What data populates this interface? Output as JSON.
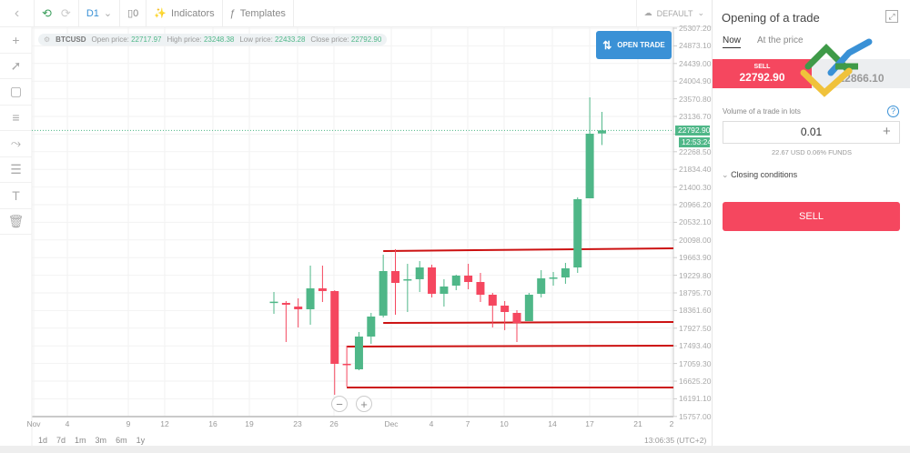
{
  "toolbar": {
    "timeframe": "D1",
    "indicators": "Indicators",
    "templates": "Templates",
    "layout": "DEFAULT"
  },
  "info": {
    "symbol": "BTCUSD",
    "open_label": "Open price:",
    "open": "22717.97",
    "high_label": "High price:",
    "high": "23248.38",
    "low_label": "Low price:",
    "low": "22433.28",
    "close_label": "Close price:",
    "close": "22792.90"
  },
  "open_trade": "OPEN TRADE",
  "price_tag": "22792.90",
  "time_tag": "12:53:24",
  "yaxis": [
    "25307.20",
    "24873.10",
    "24439.00",
    "24004.90",
    "23570.80",
    "23136.70",
    "22702.60",
    "22268.50",
    "21834.40",
    "21400.30",
    "20966.20",
    "20532.10",
    "20098.00",
    "19663.90",
    "19229.80",
    "18795.70",
    "18361.60",
    "17927.50",
    "17493.40",
    "17059.30",
    "16625.20",
    "16191.10",
    "15757.00"
  ],
  "xaxis": [
    "Nov",
    "4",
    "9",
    "12",
    "16",
    "19",
    "23",
    "26",
    "Dec",
    "4",
    "7",
    "10",
    "14",
    "17",
    "21",
    "2"
  ],
  "ranges": [
    "1d",
    "7d",
    "1m",
    "3m",
    "6m",
    "1y"
  ],
  "clock": "13:06:35 (UTC+2)",
  "colors": {
    "up": "#4fb788",
    "down": "#f5475f",
    "level": "#cc1111",
    "accent": "#3a91d6"
  },
  "chart_data": {
    "type": "candlestick",
    "symbol": "BTCUSD",
    "timeframe": "D1",
    "ylim": [
      15757.0,
      25307.2
    ],
    "candles": [
      {
        "date": "Nov 21",
        "o": 18560,
        "h": 18818,
        "l": 18281,
        "c": 18580
      },
      {
        "date": "Nov 22",
        "o": 18550,
        "h": 18595,
        "l": 17588,
        "c": 18505
      },
      {
        "date": "Nov 23",
        "o": 18460,
        "h": 18662,
        "l": 17946,
        "c": 18393
      },
      {
        "date": "Nov 24",
        "o": 18393,
        "h": 19467,
        "l": 18013,
        "c": 18908
      },
      {
        "date": "Nov 25",
        "o": 18908,
        "h": 19467,
        "l": 18572,
        "c": 18841
      },
      {
        "date": "Nov 26",
        "o": 18841,
        "h": 18860,
        "l": 16290,
        "c": 17051
      },
      {
        "date": "Nov 27",
        "o": 17051,
        "h": 17498,
        "l": 16491,
        "c": 17028
      },
      {
        "date": "Nov 28",
        "o": 16916,
        "h": 17834,
        "l": 16894,
        "c": 17722
      },
      {
        "date": "Nov 29",
        "o": 17722,
        "h": 18304,
        "l": 17543,
        "c": 18214
      },
      {
        "date": "Nov 30",
        "o": 18237,
        "h": 19736,
        "l": 18192,
        "c": 19333
      },
      {
        "date": "Dec 1",
        "o": 19333,
        "h": 19870,
        "l": 18259,
        "c": 19042
      },
      {
        "date": "Dec 2",
        "o": 19120,
        "h": 19512,
        "l": 18326,
        "c": 19132
      },
      {
        "date": "Dec 3",
        "o": 19132,
        "h": 19579,
        "l": 18818,
        "c": 19422
      },
      {
        "date": "Dec 4",
        "o": 19422,
        "h": 19490,
        "l": 18684,
        "c": 18774
      },
      {
        "date": "Dec 5",
        "o": 18774,
        "h": 19132,
        "l": 18460,
        "c": 18953
      },
      {
        "date": "Dec 6",
        "o": 18975,
        "h": 19243,
        "l": 18863,
        "c": 19221
      },
      {
        "date": "Dec 7",
        "o": 19221,
        "h": 19512,
        "l": 18885,
        "c": 19064
      },
      {
        "date": "Dec 8",
        "o": 19064,
        "h": 19288,
        "l": 18572,
        "c": 18751
      },
      {
        "date": "Dec 9",
        "o": 18751,
        "h": 18796,
        "l": 17946,
        "c": 18483
      },
      {
        "date": "Dec 10",
        "o": 18483,
        "h": 18595,
        "l": 17879,
        "c": 18326
      },
      {
        "date": "Dec 11",
        "o": 18304,
        "h": 18371,
        "l": 17588,
        "c": 18058
      },
      {
        "date": "Dec 12",
        "o": 18102,
        "h": 18796,
        "l": 18102,
        "c": 18751
      },
      {
        "date": "Dec 13",
        "o": 18774,
        "h": 19355,
        "l": 18684,
        "c": 19154
      },
      {
        "date": "Dec 14",
        "o": 19170,
        "h": 19311,
        "l": 18975,
        "c": 19176
      },
      {
        "date": "Dec 15",
        "o": 19176,
        "h": 19534,
        "l": 19020,
        "c": 19400
      },
      {
        "date": "Dec 16",
        "o": 19422,
        "h": 21145,
        "l": 19288,
        "c": 21101
      },
      {
        "date": "Dec 17",
        "o": 21123,
        "h": 23607,
        "l": 21123,
        "c": 22712
      },
      {
        "date": "Dec 18",
        "o": 22717.97,
        "h": 23248.38,
        "l": 22433.28,
        "c": 22792.9
      }
    ],
    "levels": [
      {
        "from": "Nov 30",
        "p1": 19825,
        "p2": 19892
      },
      {
        "from": "Nov 30",
        "p1": 18058,
        "p2": 18080
      },
      {
        "from": "Nov 27",
        "p1": 17476,
        "p2": 17498
      },
      {
        "from": "Nov 27",
        "p1": 16469,
        "p2": 16469
      }
    ],
    "current_price": 22792.9
  },
  "panel": {
    "title": "Opening of a trade",
    "tabs": [
      "Now",
      "At the price"
    ],
    "sell_label": "SELL",
    "sell_price": "22792.90",
    "buy_price": "22866.10",
    "volume_label": "Volume of a trade in lots",
    "volume": "0.01",
    "funds": "22.67 USD  0.06% FUNDS",
    "closing": "Closing conditions",
    "sell_button": "SELL"
  }
}
